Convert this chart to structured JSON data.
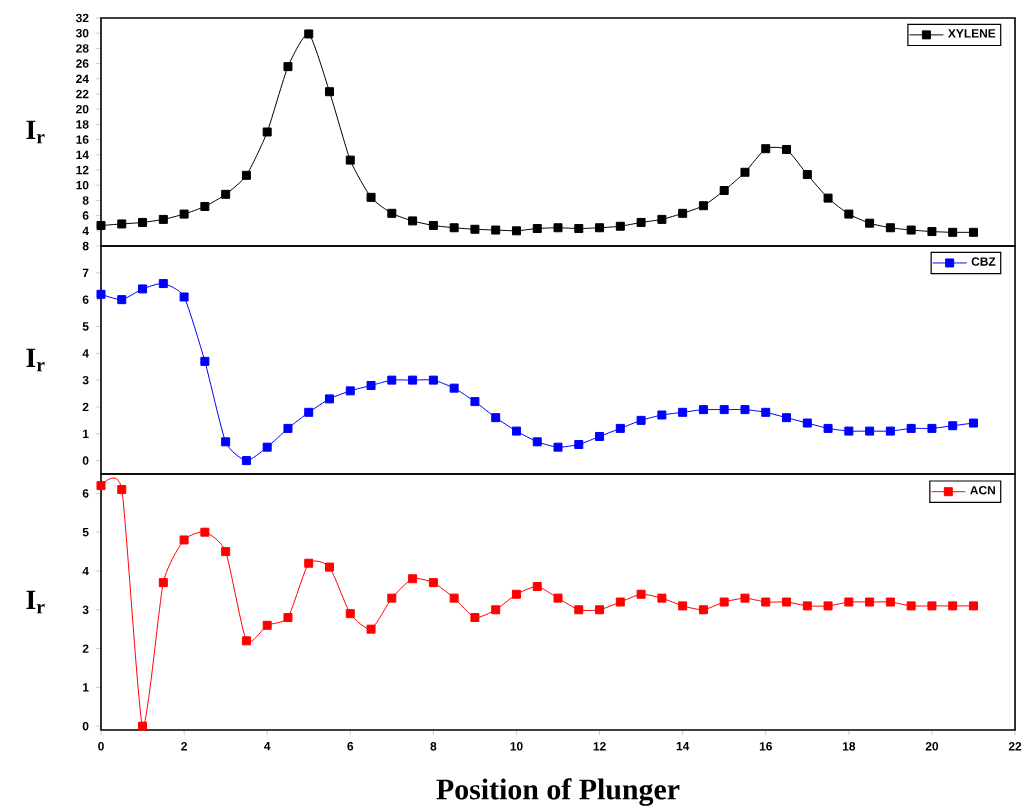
{
  "chart_data": [
    {
      "type": "line",
      "ylabel": "I$_{r}$",
      "x": [
        0,
        0.5,
        1,
        1.5,
        2,
        2.5,
        3,
        3.5,
        4,
        4.5,
        5,
        5.5,
        6,
        6.5,
        7,
        7.5,
        8,
        8.5,
        9,
        9.5,
        10,
        10.5,
        11,
        11.5,
        12,
        12.5,
        13,
        13.5,
        14,
        14.5,
        15,
        15.5,
        16,
        16.5,
        17,
        17.5,
        18,
        18.5,
        19,
        19.5,
        20,
        20.5,
        21
      ],
      "series": [
        {
          "name": "XYLENE",
          "color": "#000000",
          "values": [
            4.7,
            4.9,
            5.1,
            5.5,
            6.2,
            7.2,
            8.8,
            11.3,
            17.0,
            25.6,
            29.9,
            22.3,
            13.3,
            8.4,
            6.3,
            5.3,
            4.7,
            4.4,
            4.2,
            4.1,
            4.0,
            4.3,
            4.4,
            4.3,
            4.4,
            4.6,
            5.1,
            5.5,
            6.3,
            7.3,
            9.3,
            11.7,
            14.8,
            14.7,
            11.4,
            8.3,
            6.2,
            5.0,
            4.4,
            4.1,
            3.9,
            3.8,
            3.8
          ]
        }
      ],
      "xlim": [
        0,
        22
      ],
      "ylim": [
        2,
        32
      ],
      "xticks": [
        0,
        2,
        4,
        6,
        8,
        10,
        12,
        14,
        16,
        18,
        20,
        22
      ],
      "yticks": [
        4,
        6,
        8,
        10,
        12,
        14,
        16,
        18,
        20,
        22,
        24,
        26,
        28,
        30,
        32
      ],
      "tick_labels": "y",
      "legend": "top right",
      "marker": "square",
      "line_style": "solid"
    },
    {
      "type": "line",
      "ylabel": "I$_{r}$",
      "x": [
        0,
        0.5,
        1,
        1.5,
        2,
        2.5,
        3,
        3.5,
        4,
        4.5,
        5,
        5.5,
        6,
        6.5,
        7,
        7.5,
        8,
        8.5,
        9,
        9.5,
        10,
        10.5,
        11,
        11.5,
        12,
        12.5,
        13,
        13.5,
        14,
        14.5,
        15,
        15.5,
        16,
        16.5,
        17,
        17.5,
        18,
        18.5,
        19,
        19.5,
        20,
        20.5,
        21
      ],
      "series": [
        {
          "name": "CBZ",
          "color": "#0000ff",
          "values": [
            6.2,
            6.0,
            6.4,
            6.6,
            6.1,
            3.7,
            0.7,
            0.0,
            0.5,
            1.2,
            1.8,
            2.3,
            2.6,
            2.8,
            3.0,
            3.0,
            3.0,
            2.7,
            2.2,
            1.6,
            1.1,
            0.7,
            0.5,
            0.6,
            0.9,
            1.2,
            1.5,
            1.7,
            1.8,
            1.9,
            1.9,
            1.9,
            1.8,
            1.6,
            1.4,
            1.2,
            1.1,
            1.1,
            1.1,
            1.2,
            1.2,
            1.3,
            1.4
          ]
        }
      ],
      "xlim": [
        0,
        22
      ],
      "ylim": [
        -0.5,
        8
      ],
      "xticks": [
        0,
        2,
        4,
        6,
        8,
        10,
        12,
        14,
        16,
        18,
        20,
        22
      ],
      "yticks": [
        0,
        1,
        2,
        3,
        4,
        5,
        6,
        7,
        8
      ],
      "tick_labels": "y",
      "legend": "top right",
      "marker": "square",
      "line_style": "solid"
    },
    {
      "type": "line",
      "ylabel": "I$_{r}$",
      "xlabel": "Position of Plunger",
      "x": [
        0,
        0.5,
        1,
        1.5,
        2,
        2.5,
        3,
        3.5,
        4,
        4.5,
        5,
        5.5,
        6,
        6.5,
        7,
        7.5,
        8,
        8.5,
        9,
        9.5,
        10,
        10.5,
        11,
        11.5,
        12,
        12.5,
        13,
        13.5,
        14,
        14.5,
        15,
        15.5,
        16,
        16.5,
        17,
        17.5,
        18,
        18.5,
        19,
        19.5,
        20,
        20.5,
        21
      ],
      "series": [
        {
          "name": "ACN",
          "color": "#ff0000",
          "values": [
            6.2,
            6.1,
            0.0,
            3.7,
            4.8,
            5.0,
            4.5,
            2.2,
            2.6,
            2.8,
            4.2,
            4.1,
            2.9,
            2.5,
            3.3,
            3.8,
            3.7,
            3.3,
            2.8,
            3.0,
            3.4,
            3.6,
            3.3,
            3.0,
            3.0,
            3.2,
            3.4,
            3.3,
            3.1,
            3.0,
            3.2,
            3.3,
            3.2,
            3.2,
            3.1,
            3.1,
            3.2,
            3.2,
            3.2,
            3.1,
            3.1,
            3.1,
            3.1
          ]
        }
      ],
      "xlim": [
        0,
        22
      ],
      "ylim": [
        -0.1,
        6.5
      ],
      "xticks": [
        0,
        2,
        4,
        6,
        8,
        10,
        12,
        14,
        16,
        18,
        20,
        22
      ],
      "yticks": [
        0,
        1,
        2,
        3,
        4,
        5,
        6
      ],
      "legend": "top right",
      "marker": "square",
      "line_style": "solid"
    }
  ]
}
